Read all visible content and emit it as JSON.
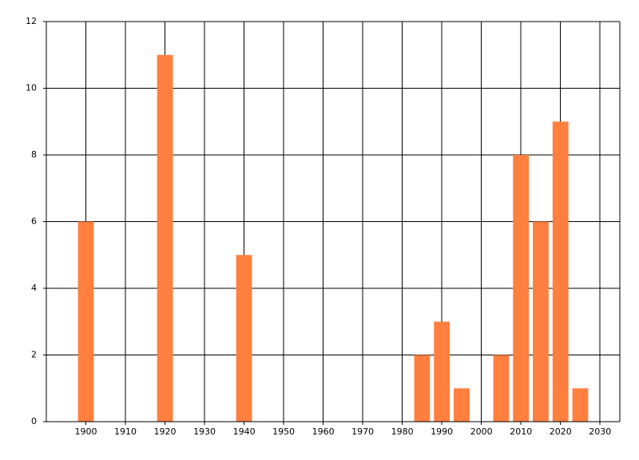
{
  "chart_data": {
    "type": "bar",
    "x": [
      1900,
      1920,
      1940,
      1985,
      1990,
      1995,
      2005,
      2010,
      2015,
      2020,
      2025
    ],
    "values": [
      6,
      11,
      5,
      2,
      3,
      1,
      2,
      8,
      6,
      9,
      1
    ],
    "color": "#ff7f3f",
    "xlim": [
      1890,
      2035
    ],
    "xticks": [
      1900,
      1910,
      1920,
      1930,
      1940,
      1950,
      1960,
      1970,
      1980,
      1990,
      2000,
      2010,
      2020,
      2030
    ],
    "ylim": [
      0,
      12
    ],
    "yticks": [
      0,
      2,
      4,
      6,
      8,
      10,
      12
    ],
    "grid": true
  }
}
